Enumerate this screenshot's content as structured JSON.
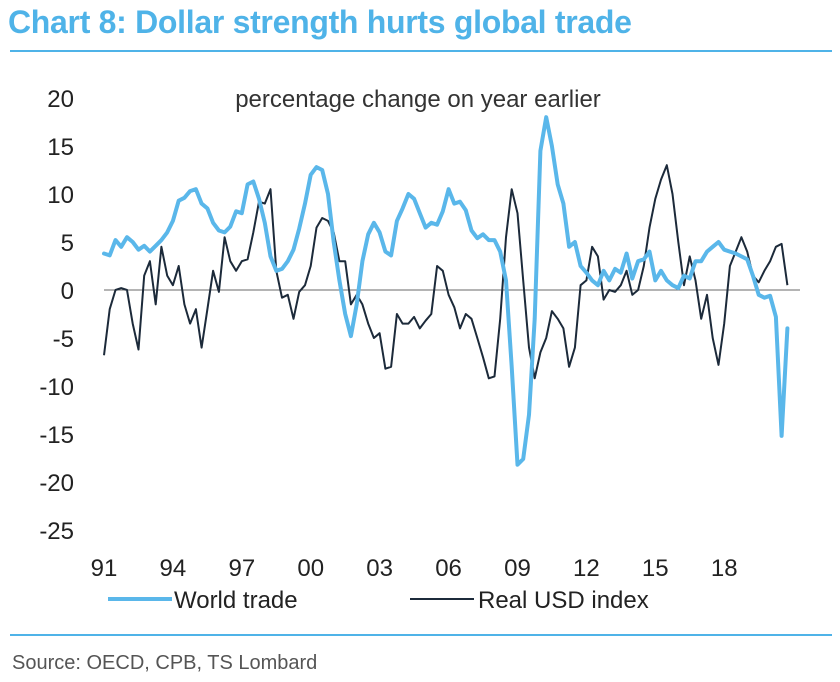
{
  "title": "Chart 8: Dollar strength hurts global trade",
  "source": "Source: OECD, CPB, TS Lombard",
  "colors": {
    "accent": "#4fb3e8",
    "world_trade": "#5ab7ea",
    "usd": "#1c2a3a"
  },
  "chart_data": {
    "type": "line",
    "title": "Chart 8: Dollar strength hurts global trade",
    "subtitle": "percentage change on year earlier",
    "xlabel": "",
    "ylabel": "",
    "xlim": [
      1991,
      2021.3
    ],
    "ylim": [
      -25,
      20
    ],
    "yticks": [
      20,
      15,
      10,
      5,
      0,
      -5,
      -10,
      -15,
      -20,
      -25
    ],
    "xticks": [
      {
        "value": 1991,
        "label": "91"
      },
      {
        "value": 1994,
        "label": "94"
      },
      {
        "value": 1997,
        "label": "97"
      },
      {
        "value": 2000,
        "label": "00"
      },
      {
        "value": 2003,
        "label": "03"
      },
      {
        "value": 2006,
        "label": "06"
      },
      {
        "value": 2009,
        "label": "09"
      },
      {
        "value": 2012,
        "label": "12"
      },
      {
        "value": 2015,
        "label": "15"
      },
      {
        "value": 2018,
        "label": "18"
      }
    ],
    "legend": "bottom",
    "series": [
      {
        "name": "World trade",
        "color": "#5ab7ea",
        "x": [
          1991.0,
          1991.25,
          1991.5,
          1991.75,
          1992.0,
          1992.25,
          1992.5,
          1992.75,
          1993.0,
          1993.25,
          1993.5,
          1993.75,
          1994.0,
          1994.25,
          1994.5,
          1994.75,
          1995.0,
          1995.25,
          1995.5,
          1995.75,
          1996.0,
          1996.25,
          1996.5,
          1996.75,
          1997.0,
          1997.25,
          1997.5,
          1997.75,
          1998.0,
          1998.25,
          1998.5,
          1998.75,
          1999.0,
          1999.25,
          1999.5,
          1999.75,
          2000.0,
          2000.25,
          2000.5,
          2000.75,
          2001.0,
          2001.25,
          2001.5,
          2001.75,
          2002.0,
          2002.25,
          2002.5,
          2002.75,
          2003.0,
          2003.25,
          2003.5,
          2003.75,
          2004.0,
          2004.25,
          2004.5,
          2004.75,
          2005.0,
          2005.25,
          2005.5,
          2005.75,
          2006.0,
          2006.25,
          2006.5,
          2006.75,
          2007.0,
          2007.25,
          2007.5,
          2007.75,
          2008.0,
          2008.25,
          2008.5,
          2008.75,
          2009.0,
          2009.25,
          2009.5,
          2009.75,
          2010.0,
          2010.25,
          2010.5,
          2010.75,
          2011.0,
          2011.25,
          2011.5,
          2011.75,
          2012.0,
          2012.25,
          2012.5,
          2012.75,
          2013.0,
          2013.25,
          2013.5,
          2013.75,
          2014.0,
          2014.25,
          2014.5,
          2014.75,
          2015.0,
          2015.25,
          2015.5,
          2015.75,
          2016.0,
          2016.25,
          2016.5,
          2016.75,
          2017.0,
          2017.25,
          2017.5,
          2017.75,
          2018.0,
          2018.25,
          2018.5,
          2018.75,
          2019.0,
          2019.25,
          2019.5,
          2019.75,
          2020.0,
          2020.25,
          2020.5,
          2020.75
        ],
        "values": [
          3.8,
          3.6,
          5.2,
          4.5,
          5.5,
          5.0,
          4.2,
          4.6,
          4.0,
          4.6,
          5.2,
          6.0,
          7.2,
          9.3,
          9.6,
          10.3,
          10.5,
          9.0,
          8.5,
          7.0,
          6.2,
          6.0,
          6.6,
          8.2,
          8.0,
          11.0,
          11.3,
          9.5,
          7.0,
          3.5,
          2.0,
          2.2,
          3.0,
          4.2,
          6.4,
          9.0,
          12.0,
          12.8,
          12.5,
          10.0,
          5.0,
          1.0,
          -2.5,
          -4.8,
          -1.5,
          3.0,
          5.8,
          7.0,
          6.0,
          4.0,
          3.6,
          7.2,
          8.5,
          10.0,
          9.5,
          8.0,
          6.5,
          7.0,
          6.8,
          8.2,
          10.5,
          9.0,
          9.2,
          8.3,
          6.2,
          5.4,
          5.8,
          5.2,
          5.2,
          4.0,
          1.0,
          -8.0,
          -18.2,
          -17.6,
          -13.0,
          -3.0,
          14.5,
          18.0,
          15.0,
          11.0,
          9.0,
          4.5,
          5.0,
          2.5,
          1.8,
          1.0,
          0.5,
          2.0,
          1.0,
          2.2,
          1.8,
          3.8,
          1.2,
          3.0,
          3.2,
          4.0,
          1.0,
          2.0,
          1.0,
          0.5,
          0.2,
          1.5,
          1.2,
          3.0,
          3.0,
          4.0,
          4.5,
          5.0,
          4.2,
          4.0,
          3.8,
          3.5,
          3.2,
          1.5,
          -0.5,
          -0.8,
          -0.6,
          -2.8,
          -15.2,
          -4.0
        ]
      },
      {
        "name": "Real USD index",
        "color": "#1c2a3a",
        "x": [
          1991.0,
          1991.25,
          1991.5,
          1991.75,
          1992.0,
          1992.25,
          1992.5,
          1992.75,
          1993.0,
          1993.25,
          1993.5,
          1993.75,
          1994.0,
          1994.25,
          1994.5,
          1994.75,
          1995.0,
          1995.25,
          1995.5,
          1995.75,
          1996.0,
          1996.25,
          1996.5,
          1996.75,
          1997.0,
          1997.25,
          1997.5,
          1997.75,
          1998.0,
          1998.25,
          1998.5,
          1998.75,
          1999.0,
          1999.25,
          1999.5,
          1999.75,
          2000.0,
          2000.25,
          2000.5,
          2000.75,
          2001.0,
          2001.25,
          2001.5,
          2001.75,
          2002.0,
          2002.25,
          2002.5,
          2002.75,
          2003.0,
          2003.25,
          2003.5,
          2003.75,
          2004.0,
          2004.25,
          2004.5,
          2004.75,
          2005.0,
          2005.25,
          2005.5,
          2005.75,
          2006.0,
          2006.25,
          2006.5,
          2006.75,
          2007.0,
          2007.25,
          2007.5,
          2007.75,
          2008.0,
          2008.25,
          2008.5,
          2008.75,
          2009.0,
          2009.25,
          2009.5,
          2009.75,
          2010.0,
          2010.25,
          2010.5,
          2010.75,
          2011.0,
          2011.25,
          2011.5,
          2011.75,
          2012.0,
          2012.25,
          2012.5,
          2012.75,
          2013.0,
          2013.25,
          2013.5,
          2013.75,
          2014.0,
          2014.25,
          2014.5,
          2014.75,
          2015.0,
          2015.25,
          2015.5,
          2015.75,
          2016.0,
          2016.25,
          2016.5,
          2016.75,
          2017.0,
          2017.25,
          2017.5,
          2017.75,
          2018.0,
          2018.25,
          2018.5,
          2018.75,
          2019.0,
          2019.25,
          2019.5,
          2019.75,
          2020.0,
          2020.25,
          2020.5,
          2020.75
        ],
        "values": [
          -6.8,
          -2.0,
          0.0,
          0.2,
          0.0,
          -3.5,
          -6.2,
          1.5,
          3.0,
          -1.5,
          4.5,
          1.5,
          0.5,
          2.5,
          -1.5,
          -3.5,
          -2.0,
          -6.0,
          -2.0,
          2.0,
          -0.2,
          5.5,
          3.0,
          2.0,
          3.0,
          3.2,
          6.0,
          9.2,
          9.0,
          10.5,
          2.0,
          -0.8,
          -0.5,
          -3.0,
          -0.2,
          0.5,
          2.5,
          6.5,
          7.5,
          7.2,
          6.0,
          3.0,
          3.0,
          -1.5,
          -0.5,
          -1.5,
          -3.5,
          -5.0,
          -4.5,
          -8.2,
          -8.0,
          -2.5,
          -3.5,
          -3.5,
          -2.8,
          -4.0,
          -3.2,
          -2.5,
          2.5,
          2.0,
          -0.5,
          -1.8,
          -4.0,
          -2.5,
          -3.0,
          -5.0,
          -7.0,
          -9.2,
          -9.0,
          -3.0,
          5.5,
          10.5,
          8.0,
          1.0,
          -6.0,
          -9.2,
          -6.5,
          -5.0,
          -2.2,
          -3.0,
          -4.0,
          -8.0,
          -6.0,
          0.5,
          1.0,
          4.5,
          3.5,
          -1.0,
          0.0,
          -0.2,
          0.5,
          2.0,
          -0.5,
          0.0,
          2.5,
          6.5,
          9.5,
          11.5,
          13.0,
          10.0,
          5.0,
          0.5,
          3.5,
          1.0,
          -3.0,
          -0.5,
          -5.0,
          -7.8,
          -3.5,
          2.5,
          4.0,
          5.5,
          4.0,
          1.5,
          0.8,
          2.0,
          3.0,
          4.5,
          4.8,
          0.5
        ]
      }
    ]
  }
}
